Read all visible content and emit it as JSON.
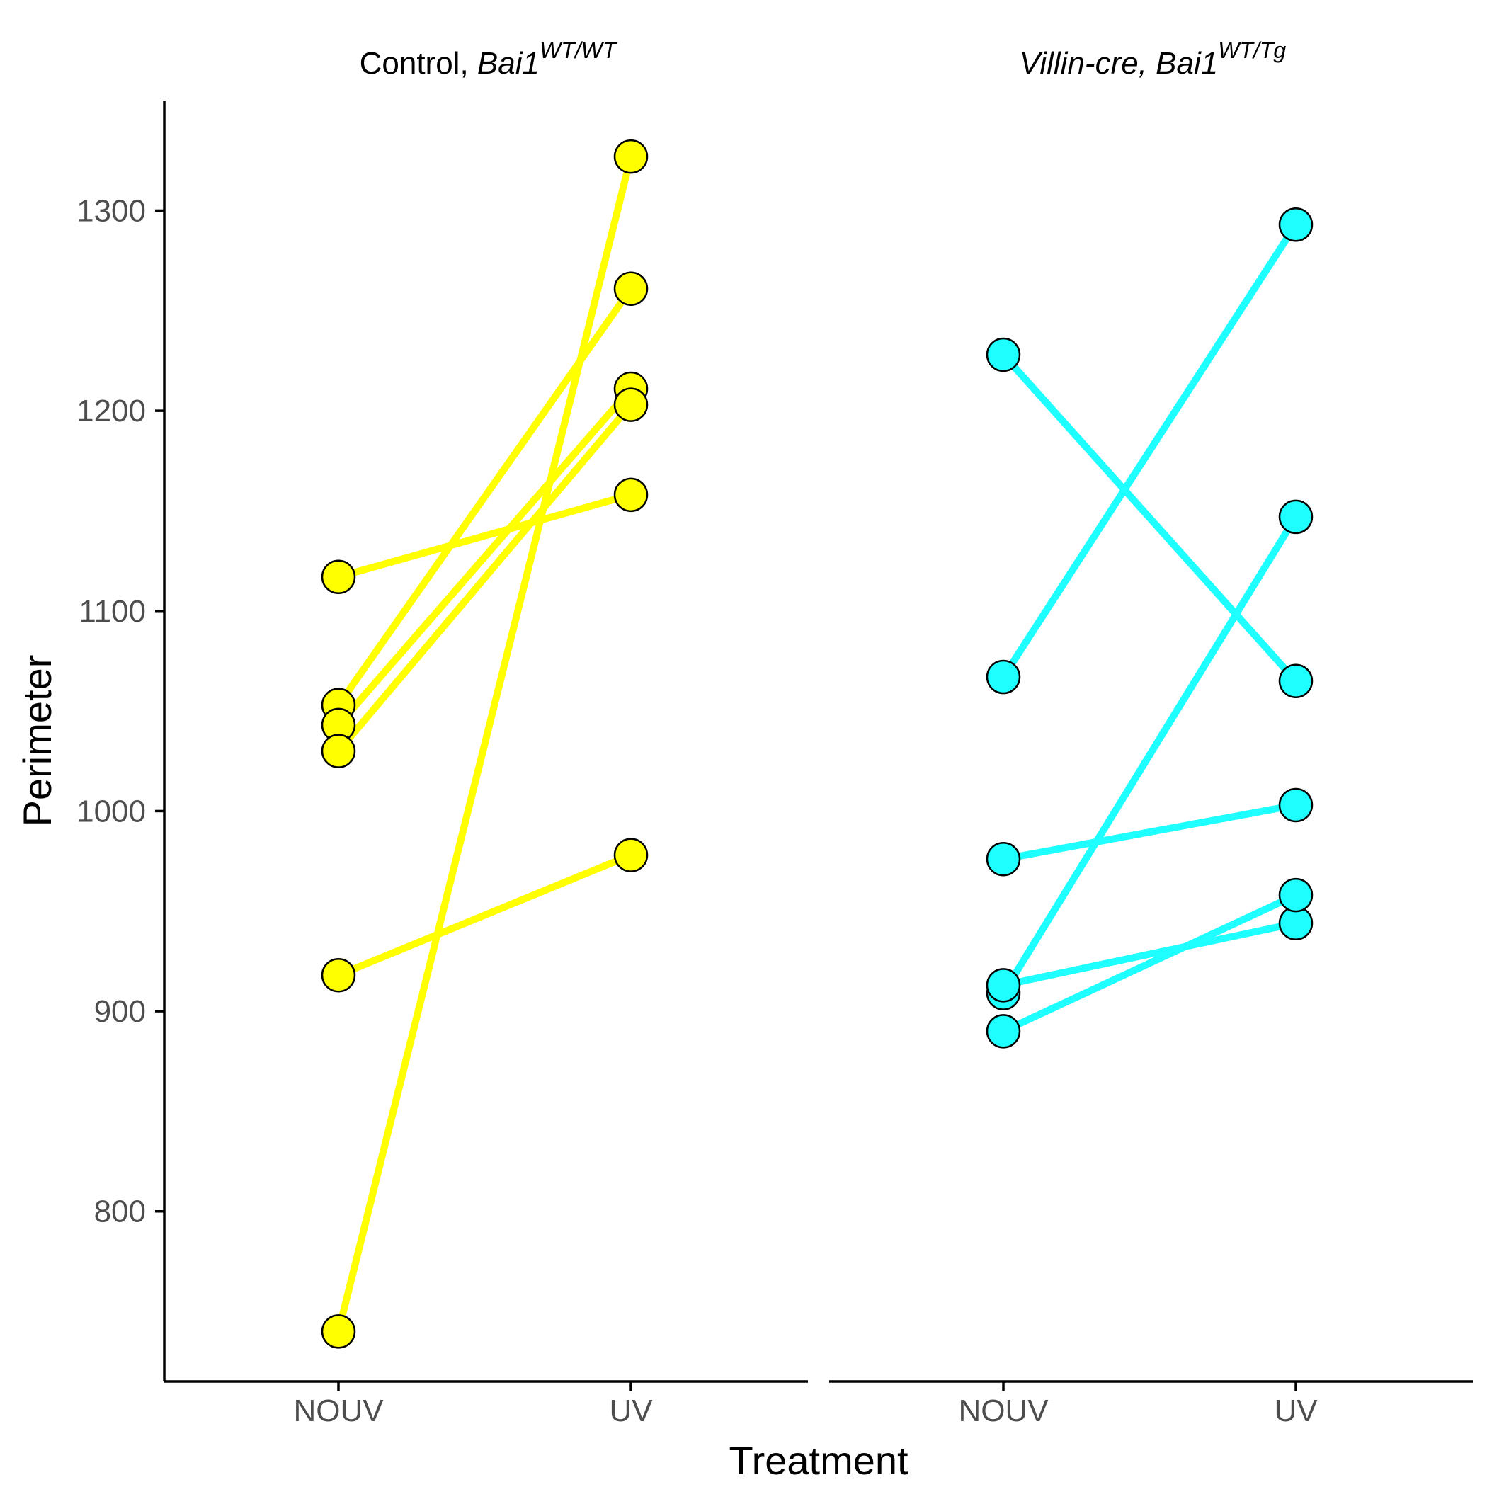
{
  "chart_data": {
    "type": "line",
    "xlabel": "Treatment",
    "ylabel": "Perimeter",
    "categories": [
      "NOUV",
      "UV"
    ],
    "ylim": [
      715,
      1355
    ],
    "yticks": [
      800,
      900,
      1000,
      1100,
      1200,
      1300
    ],
    "grid": false,
    "legend": "none",
    "panels": [
      {
        "title_plain": "Control, ",
        "title_italic": "Bai1",
        "title_sup": "WT/WT",
        "color": "#FFFF00",
        "pairs": [
          {
            "NOUV": 740,
            "UV": 1327
          },
          {
            "NOUV": 918,
            "UV": 978
          },
          {
            "NOUV": 1117,
            "UV": 1158
          },
          {
            "NOUV": 1053,
            "UV": 1261
          },
          {
            "NOUV": 1043,
            "UV": 1211
          },
          {
            "NOUV": 1030,
            "UV": 1203
          }
        ]
      },
      {
        "title_plain": "",
        "title_italic": "Villin-cre, Bai1",
        "title_sup": "WT/Tg",
        "color": "#1EFFFF",
        "pairs": [
          {
            "NOUV": 1228,
            "UV": 1065
          },
          {
            "NOUV": 1067,
            "UV": 1293
          },
          {
            "NOUV": 976,
            "UV": 1003
          },
          {
            "NOUV": 909,
            "UV": 1147
          },
          {
            "NOUV": 913,
            "UV": 944
          },
          {
            "NOUV": 890,
            "UV": 958
          }
        ]
      }
    ]
  }
}
